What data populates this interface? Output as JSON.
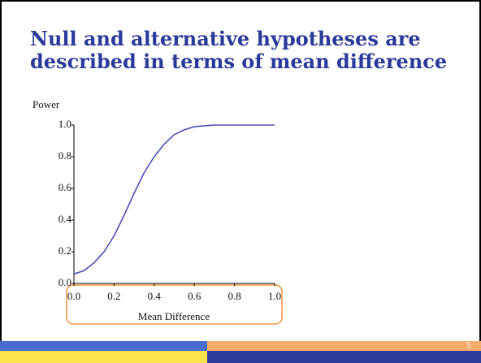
{
  "slide_title": "Null and alternative hypotheses are described in terms of mean difference",
  "slide_number": "5",
  "chart_data": {
    "type": "line",
    "y_label": "Power",
    "x_label": "Mean Difference",
    "x": [
      0,
      0.05,
      0.1,
      0.15,
      0.2,
      0.25,
      0.3,
      0.35,
      0.4,
      0.45,
      0.5,
      0.55,
      0.6,
      0.7,
      0.8,
      0.9,
      1.0
    ],
    "series": [
      {
        "name": "Power",
        "color": "#4a4fb8",
        "values": [
          0.06,
          0.08,
          0.13,
          0.2,
          0.3,
          0.43,
          0.57,
          0.7,
          0.8,
          0.88,
          0.94,
          0.97,
          0.99,
          1.0,
          1.0,
          1.0,
          1.0
        ]
      }
    ],
    "xlim": [
      0,
      1
    ],
    "ylim": [
      0,
      1
    ],
    "xticks": [
      {
        "value": 0,
        "label": "0.0"
      },
      0.2,
      0.4,
      0.6,
      0.8,
      {
        "value": 1,
        "label": "1.0"
      }
    ],
    "yticks": [
      {
        "value": 0,
        "label": "0.0"
      },
      0.2,
      0.4,
      0.6,
      0.8,
      {
        "value": 1,
        "label": "1.0"
      }
    ]
  }
}
